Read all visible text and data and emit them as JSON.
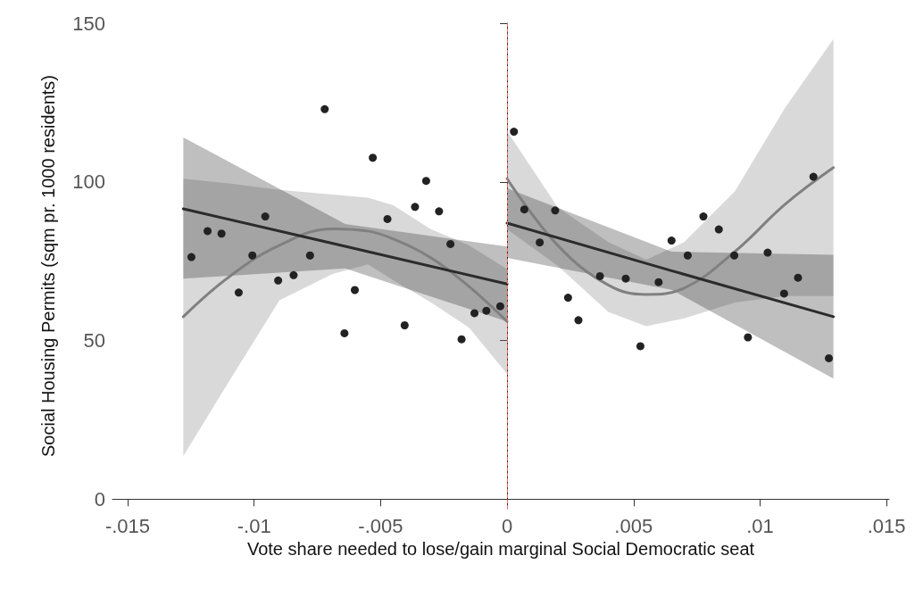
{
  "chart_data": {
    "type": "scatter",
    "xlabel": "Vote share needed to lose/gain marginal Social Democratic seat",
    "ylabel": "Social Housing Permits (sqm pr. 1000 residents)",
    "xlim": [
      -0.0156,
      0.0151
    ],
    "ylim": [
      -3,
      150
    ],
    "xticks": [
      {
        "value": -0.015,
        "label": "-.015"
      },
      {
        "value": -0.01,
        "label": "-.01"
      },
      {
        "value": -0.005,
        "label": "-.005"
      },
      {
        "value": 0,
        "label": "0"
      },
      {
        "value": 0.005,
        "label": ".005"
      },
      {
        "value": 0.01,
        "label": ".01"
      },
      {
        "value": 0.015,
        "label": ".015"
      }
    ],
    "yticks": [
      0,
      50,
      100,
      150
    ],
    "grid": false,
    "ref_lines": [
      {
        "axis": "x",
        "value": 0,
        "color": "#ff6666",
        "line_style": "dashed"
      }
    ],
    "series": [
      {
        "type": "line",
        "color": "#808080",
        "x": [
          -0.0128,
          -0.011,
          -0.009,
          -0.0069,
          -0.0055,
          -0.0045,
          -0.003,
          -0.0015,
          0
        ],
        "values": [
          57.5,
          70,
          80,
          85.2,
          84.5,
          82,
          76,
          67,
          56
        ],
        "lower": [
          13.6,
          37,
          62.7,
          71,
          74,
          69,
          62,
          54,
          39.5
        ],
        "upper": [
          101,
          99.5,
          97.5,
          96,
          95,
          92.6,
          85,
          80,
          72.5
        ]
      },
      {
        "type": "line",
        "color": "#808080",
        "x": [
          0,
          0.002,
          0.004,
          0.0055,
          0.007,
          0.009,
          0.011,
          0.0129
        ],
        "values": [
          101,
          80,
          67.5,
          64.5,
          66.5,
          78,
          93,
          104.5
        ],
        "lower": [
          85,
          73.6,
          59,
          54.5,
          57,
          62,
          64,
          64
        ],
        "upper": [
          116,
          92,
          81,
          75.5,
          81,
          97,
          123.5,
          145
        ]
      },
      {
        "type": "line",
        "color": "#2b2b2b",
        "x": [
          -0.0128,
          -0.0064,
          0
        ],
        "values": [
          91.5,
          79.7,
          67.8
        ],
        "lower": [
          69.5,
          72.7,
          56
        ],
        "upper": [
          114,
          86.7,
          79.6
        ]
      },
      {
        "type": "line",
        "color": "#2b2b2b",
        "x": [
          0,
          0.0065,
          0.0129
        ],
        "values": [
          87,
          72,
          57.5
        ],
        "lower": [
          76,
          66,
          38
        ],
        "upper": [
          98,
          78,
          77
        ]
      },
      {
        "marker": "circle",
        "color": "#222222",
        "x": [
          -0.01248,
          -0.01184,
          -0.01129,
          -0.01061,
          -0.01007,
          -0.00956,
          -0.00905,
          -0.00844,
          -0.00779,
          -0.00721,
          -0.00643,
          -0.00602,
          -0.00531,
          -0.00473,
          -0.00405,
          -0.00364,
          -0.0032,
          -0.00269,
          -0.00224,
          -0.0018,
          -0.00129,
          -0.00082,
          -0.00027,
          0.00027,
          0.00068,
          0.00129,
          0.0019,
          0.00241,
          0.00282,
          0.00367,
          0.00469,
          0.00527,
          0.00599,
          0.0065,
          0.00714,
          0.00776,
          0.00837,
          0.00898,
          0.00952,
          0.0103,
          0.01095,
          0.0115,
          0.01211,
          0.01272
        ],
        "values": [
          76.3,
          84.5,
          83.7,
          65.1,
          76.8,
          89.1,
          68.9,
          70.6,
          76.8,
          122.9,
          52.3,
          65.9,
          107.6,
          88.3,
          54.8,
          92.1,
          100.3,
          90.7,
          80.4,
          50.4,
          58.6,
          59.4,
          60.8,
          115.8,
          91.3,
          80.9,
          91,
          63.5,
          56.4,
          70.3,
          69.5,
          48.2,
          68.4,
          81.5,
          76.8,
          89.1,
          85,
          76.8,
          51,
          77.7,
          64.8,
          69.8,
          101.6,
          44.4
        ]
      }
    ]
  }
}
